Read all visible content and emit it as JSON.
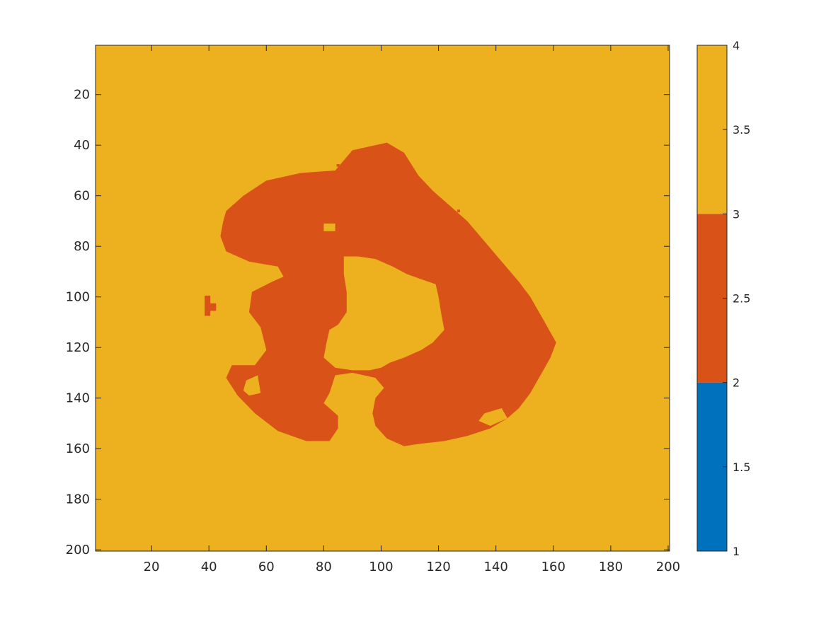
{
  "chart_data": {
    "type": "heatmap",
    "title": "",
    "xlabel": "",
    "ylabel": "",
    "xlim": [
      0.5,
      200.5
    ],
    "ylim": [
      0.5,
      200.5
    ],
    "y_direction": "reverse",
    "grid": false,
    "x_ticks": [
      20,
      40,
      60,
      80,
      100,
      120,
      140,
      160,
      180,
      200
    ],
    "y_ticks": [
      20,
      40,
      60,
      80,
      100,
      120,
      140,
      160,
      180,
      200
    ],
    "background_value": 4,
    "region_value": 3,
    "region_shape": "irregular ring-shaped region spanning about columns 44–161 and rows 38–159, open at the bottom, with a central hole (value 4) around columns 87–121, rows 84–130; small isolated value-3 patch near column 40, rows 100–107",
    "region_outline": [
      [
        46,
        66
      ],
      [
        52,
        60
      ],
      [
        60,
        54
      ],
      [
        72,
        51
      ],
      [
        84,
        50
      ],
      [
        90,
        42
      ],
      [
        102,
        39
      ],
      [
        108,
        43
      ],
      [
        113,
        52
      ],
      [
        118,
        58
      ],
      [
        124,
        64
      ],
      [
        130,
        70
      ],
      [
        136,
        78
      ],
      [
        142,
        86
      ],
      [
        148,
        94
      ],
      [
        152,
        100
      ],
      [
        156,
        108
      ],
      [
        159,
        114
      ],
      [
        161,
        118
      ],
      [
        159,
        124
      ],
      [
        156,
        130
      ],
      [
        152,
        138
      ],
      [
        148,
        144
      ],
      [
        144,
        148
      ],
      [
        138,
        152
      ],
      [
        130,
        155
      ],
      [
        122,
        157
      ],
      [
        114,
        158
      ],
      [
        108,
        159
      ],
      [
        102,
        156
      ],
      [
        98,
        151
      ],
      [
        97,
        146
      ],
      [
        98,
        140
      ],
      [
        101,
        136
      ],
      [
        98,
        132
      ],
      [
        94,
        131
      ],
      [
        90,
        130
      ],
      [
        84,
        131
      ],
      [
        82,
        138
      ],
      [
        80,
        142
      ],
      [
        85,
        147
      ],
      [
        85,
        152
      ],
      [
        82,
        157
      ],
      [
        74,
        157
      ],
      [
        64,
        153
      ],
      [
        56,
        146
      ],
      [
        50,
        139
      ],
      [
        46,
        132
      ],
      [
        48,
        127
      ],
      [
        56,
        127
      ],
      [
        60,
        121
      ],
      [
        58,
        112
      ],
      [
        54,
        106
      ],
      [
        55,
        98
      ],
      [
        62,
        94
      ],
      [
        66,
        92
      ],
      [
        64,
        88
      ],
      [
        54,
        86
      ],
      [
        46,
        82
      ],
      [
        44,
        76
      ],
      [
        45,
        70
      ]
    ],
    "hole_outline": [
      [
        87,
        84
      ],
      [
        92,
        84
      ],
      [
        98,
        85
      ],
      [
        104,
        88
      ],
      [
        109,
        91
      ],
      [
        114,
        93
      ],
      [
        119,
        95
      ],
      [
        120,
        100
      ],
      [
        121,
        107
      ],
      [
        122,
        113
      ],
      [
        118,
        118
      ],
      [
        114,
        121
      ],
      [
        108,
        124
      ],
      [
        103,
        126
      ],
      [
        100,
        128
      ],
      [
        96,
        129
      ],
      [
        90,
        129
      ],
      [
        84,
        128
      ],
      [
        80,
        124
      ],
      [
        81,
        118
      ],
      [
        82,
        113
      ],
      [
        85,
        111
      ],
      [
        88,
        106
      ],
      [
        88,
        98
      ],
      [
        87,
        91
      ],
      [
        87,
        86
      ]
    ],
    "colorbar": {
      "min": 1,
      "max": 4,
      "ticks": [
        1,
        1.5,
        2,
        2.5,
        3,
        3.5,
        4
      ],
      "tick_labels": [
        "1",
        "1.5",
        "2",
        "2.5",
        "3",
        "3.5",
        "4"
      ],
      "levels": [
        {
          "from": 1,
          "to": 2,
          "color": "#0072BD"
        },
        {
          "from": 2,
          "to": 3,
          "color": "#D95319"
        },
        {
          "from": 3,
          "to": 4,
          "color": "#EDB120"
        }
      ]
    },
    "colors": {
      "value_4": "#EDB120",
      "value_3": "#D95319",
      "value_1_2": "#0072BD"
    }
  }
}
